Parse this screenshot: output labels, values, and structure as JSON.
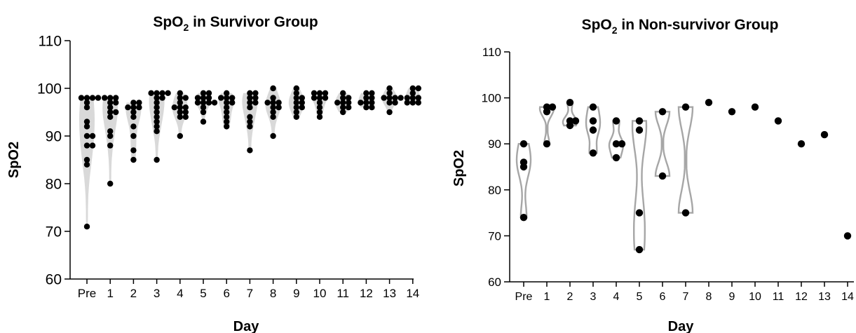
{
  "chart_data": [
    {
      "type": "scatter",
      "title_prefix": "SpO",
      "title_sub": "2",
      "title_suffix": " in Survivor Group",
      "xlabel": "Day",
      "ylabel": "SpO2",
      "ylim": [
        60,
        110
      ],
      "yticks": [
        60,
        70,
        80,
        90,
        100,
        110
      ],
      "categories": [
        "Pre",
        "1",
        "2",
        "3",
        "4",
        "5",
        "6",
        "7",
        "8",
        "9",
        "10",
        "11",
        "12",
        "13",
        "14"
      ],
      "points": [
        [
          98,
          98,
          97,
          96,
          93,
          92,
          90,
          90,
          88,
          88,
          85,
          84,
          71,
          98,
          98
        ],
        [
          98,
          98,
          97,
          96,
          95,
          95,
          94,
          91,
          90,
          88,
          80,
          98,
          97
        ],
        [
          97,
          96,
          96,
          95,
          94,
          92,
          90,
          87,
          85,
          97,
          96
        ],
        [
          99,
          99,
          99,
          98,
          97,
          96,
          95,
          94,
          93,
          92,
          91,
          85,
          99,
          98
        ],
        [
          99,
          98,
          97,
          96,
          96,
          95,
          95,
          94,
          94,
          90,
          98,
          96
        ],
        [
          99,
          98,
          98,
          97,
          97,
          97,
          96,
          95,
          93,
          99,
          98,
          97
        ],
        [
          99,
          98,
          98,
          97,
          96,
          95,
          94,
          93,
          92,
          98,
          97
        ],
        [
          99,
          99,
          98,
          97,
          96,
          94,
          93,
          92,
          87,
          98,
          97
        ],
        [
          100,
          98,
          97,
          97,
          96,
          95,
          94,
          90,
          97,
          96
        ],
        [
          100,
          99,
          98,
          97,
          96,
          96,
          95,
          94,
          98,
          97
        ],
        [
          99,
          99,
          98,
          98,
          97,
          96,
          95,
          94,
          99,
          98
        ],
        [
          99,
          98,
          97,
          97,
          96,
          96,
          95,
          98,
          97
        ],
        [
          99,
          99,
          98,
          97,
          97,
          96,
          96,
          98,
          97
        ],
        [
          100,
          99,
          98,
          98,
          98,
          97,
          95,
          98,
          97
        ],
        [
          100,
          100,
          99,
          98,
          98,
          97,
          97,
          98,
          97
        ]
      ],
      "violin_color": "#d9d9d9",
      "point_color": "#000000"
    },
    {
      "type": "scatter",
      "title_prefix": "SpO",
      "title_sub": "2",
      "title_suffix": " in Non-survivor Group",
      "xlabel": "Day",
      "ylabel": "SpO2",
      "ylim": [
        60,
        110
      ],
      "yticks": [
        60,
        70,
        80,
        90,
        100,
        110
      ],
      "categories": [
        "Pre",
        "1",
        "2",
        "3",
        "4",
        "5",
        "6",
        "7",
        "8",
        "9",
        "10",
        "11",
        "12",
        "13",
        "14"
      ],
      "points": [
        [
          90,
          86,
          85,
          74
        ],
        [
          98,
          98,
          97,
          90
        ],
        [
          99,
          95,
          95,
          94
        ],
        [
          98,
          95,
          93,
          88
        ],
        [
          95,
          90,
          90,
          87
        ],
        [
          95,
          93,
          75,
          67
        ],
        [
          97,
          83
        ],
        [
          98,
          75
        ],
        [
          99
        ],
        [
          97
        ],
        [
          98
        ],
        [
          95
        ],
        [
          90
        ],
        [
          92
        ],
        [
          70
        ]
      ],
      "violin_color": "#a6a6a6",
      "point_color": "#000000"
    }
  ]
}
